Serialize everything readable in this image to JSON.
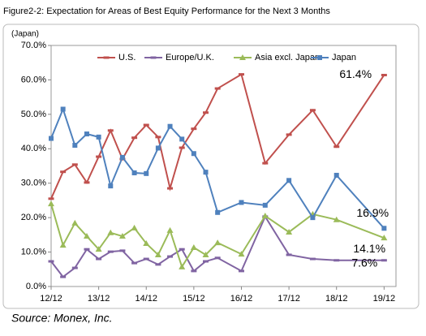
{
  "chart_data": {
    "type": "line",
    "title": "Figure2-2: Expectation for Areas of Best Equity Performance for the Next 3 Months",
    "y_axis_label": "(Japan)",
    "source": "Source: Monex, Inc.",
    "xlim": [
      0,
      29
    ],
    "xticks": [
      {
        "value": 0,
        "label": "12/12"
      },
      {
        "value": 4,
        "label": "13/12"
      },
      {
        "value": 8,
        "label": "14/12"
      },
      {
        "value": 12,
        "label": "15/12"
      },
      {
        "value": 16,
        "label": "16/12"
      },
      {
        "value": 20,
        "label": "17/12"
      },
      {
        "value": 24,
        "label": "18/12"
      },
      {
        "value": 28,
        "label": "19/12"
      }
    ],
    "ylim": [
      0,
      70
    ],
    "yticks": [
      {
        "value": 0,
        "label": "0.0%"
      },
      {
        "value": 10,
        "label": "10.0%"
      },
      {
        "value": 20,
        "label": "20.0%"
      },
      {
        "value": 30,
        "label": "30.0%"
      },
      {
        "value": 40,
        "label": "40.0%"
      },
      {
        "value": 50,
        "label": "50.0%"
      },
      {
        "value": 60,
        "label": "60.0%"
      },
      {
        "value": 70,
        "label": "70.0%"
      }
    ],
    "grid": false,
    "legend": "top",
    "x": [
      0,
      1,
      2,
      3,
      4,
      5,
      6,
      7,
      8,
      9,
      10,
      11,
      12,
      13,
      14,
      16,
      18,
      20,
      22,
      24,
      28
    ],
    "series": [
      {
        "name": "U.S.",
        "color": "#c0504d",
        "marker": "dash",
        "values": [
          25.5,
          33.3,
          35.4,
          30.2,
          37.7,
          45.3,
          37,
          43.2,
          46.9,
          43.4,
          28.5,
          40.3,
          45.8,
          50.5,
          57.5,
          61.6,
          35.8,
          44.1,
          51.2,
          40.6,
          61.4
        ],
        "value_labels": [
          null,
          null,
          null,
          null,
          null,
          null,
          null,
          null,
          null,
          null,
          null,
          null,
          null,
          null,
          null,
          null,
          null,
          null,
          null,
          null,
          "61.4%"
        ]
      },
      {
        "name": "Europe/U.K.",
        "color": "#8064a2",
        "marker": "dash",
        "values": [
          7.3,
          2.8,
          5.4,
          10.8,
          8,
          10.1,
          10.4,
          6.8,
          8,
          6.4,
          8.7,
          10.8,
          4.5,
          7.3,
          8.3,
          4.5,
          20.3,
          9.2,
          8,
          7.6,
          7.6
        ],
        "value_labels": [
          null,
          null,
          null,
          null,
          null,
          null,
          null,
          null,
          null,
          null,
          null,
          null,
          null,
          null,
          null,
          null,
          null,
          null,
          null,
          null,
          "7.6%"
        ]
      },
      {
        "name": "Asia excl. Japan",
        "color": "#9bbb59",
        "marker": "triangle",
        "values": [
          24,
          12,
          18.4,
          14.6,
          10.8,
          15.6,
          14.6,
          17,
          12.5,
          9.2,
          16.3,
          5.7,
          11.3,
          9.2,
          12.7,
          9.4,
          20.5,
          15.8,
          21,
          19.4,
          14.1
        ],
        "value_labels": [
          null,
          null,
          null,
          null,
          null,
          null,
          null,
          null,
          null,
          null,
          null,
          null,
          null,
          null,
          null,
          null,
          null,
          null,
          null,
          null,
          "14.1%"
        ]
      },
      {
        "name": "Japan",
        "color": "#4f81bd",
        "marker": "square",
        "values": [
          43,
          51.5,
          41,
          44.3,
          43.4,
          29.2,
          37.5,
          33,
          32.8,
          40.2,
          46.5,
          42.8,
          38.6,
          33.2,
          21.5,
          24.4,
          23.6,
          30.8,
          20,
          32.3,
          16.9
        ],
        "value_labels": [
          null,
          null,
          null,
          null,
          null,
          null,
          null,
          null,
          null,
          null,
          null,
          null,
          null,
          null,
          null,
          null,
          null,
          null,
          null,
          null,
          "16.9%"
        ]
      }
    ]
  }
}
